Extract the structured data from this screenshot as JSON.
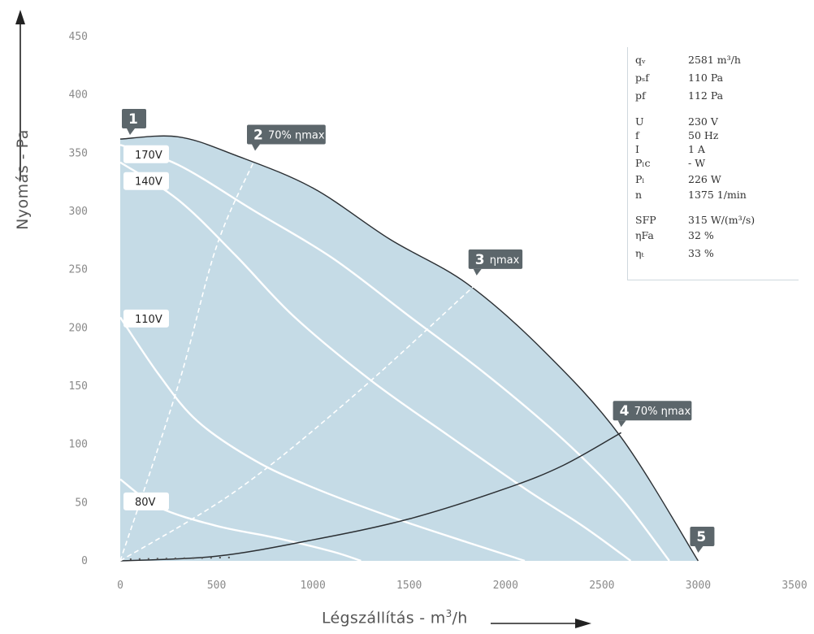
{
  "chart_data": {
    "type": "line",
    "xlabel": "Légszállítás - m",
    "xlabel_sup": "3",
    "xlabel_tail": "/h",
    "ylabel": "Nyomás - Pa",
    "xlim": [
      0,
      3500
    ],
    "ylim": [
      0,
      450
    ],
    "x_ticks": [
      "0",
      "500",
      "1000",
      "1500",
      "2000",
      "2500",
      "3000",
      "3500"
    ],
    "y_ticks": [
      "0",
      "50",
      "100",
      "150",
      "200",
      "250",
      "300",
      "350",
      "400",
      "450"
    ],
    "grid": false,
    "area_fill": "#c5dbe6",
    "envelope": [
      [
        0,
        362
      ],
      [
        300,
        364
      ],
      [
        600,
        348
      ],
      [
        1000,
        320
      ],
      [
        1400,
        276
      ],
      [
        1800,
        238
      ],
      [
        2200,
        180
      ],
      [
        2600,
        106
      ],
      [
        3000,
        0
      ]
    ],
    "series": [
      {
        "name": "170V",
        "kind": "speed",
        "points": [
          [
            0,
            357
          ],
          [
            300,
            340
          ],
          [
            700,
            300
          ],
          [
            1100,
            260
          ],
          [
            1500,
            210
          ],
          [
            1900,
            160
          ],
          [
            2300,
            104
          ],
          [
            2600,
            54
          ],
          [
            2850,
            0
          ]
        ]
      },
      {
        "name": "140V",
        "kind": "speed",
        "points": [
          [
            0,
            342
          ],
          [
            300,
            310
          ],
          [
            600,
            262
          ],
          [
            900,
            210
          ],
          [
            1300,
            155
          ],
          [
            1700,
            108
          ],
          [
            2100,
            62
          ],
          [
            2400,
            30
          ],
          [
            2650,
            0
          ]
        ]
      },
      {
        "name": "110V",
        "kind": "speed",
        "points": [
          [
            0,
            209
          ],
          [
            200,
            160
          ],
          [
            400,
            120
          ],
          [
            700,
            86
          ],
          [
            1000,
            63
          ],
          [
            1400,
            38
          ],
          [
            1800,
            16
          ],
          [
            2100,
            0
          ]
        ]
      },
      {
        "name": "80V",
        "kind": "speed",
        "points": [
          [
            0,
            70
          ],
          [
            200,
            46
          ],
          [
            500,
            30
          ],
          [
            800,
            20
          ],
          [
            1100,
            8
          ],
          [
            1250,
            0
          ]
        ]
      },
      {
        "name": "system",
        "kind": "system",
        "points": [
          [
            0,
            0
          ],
          [
            500,
            4
          ],
          [
            1000,
            18
          ],
          [
            1500,
            36
          ],
          [
            2000,
            62
          ],
          [
            2300,
            82
          ],
          [
            2600,
            110
          ]
        ]
      },
      {
        "name": "2 70% ηmax",
        "kind": "efficiency",
        "points": [
          [
            0,
            0
          ],
          [
            300,
            150
          ],
          [
            500,
            270
          ],
          [
            700,
            345
          ]
        ]
      },
      {
        "name": "3 ηmax",
        "kind": "efficiency",
        "points": [
          [
            0,
            0
          ],
          [
            600,
            60
          ],
          [
            1200,
            140
          ],
          [
            1850,
            238
          ]
        ]
      }
    ],
    "voltage_labels": [
      {
        "text": "170V",
        "y": 349
      },
      {
        "text": "140V",
        "y": 326
      },
      {
        "text": "110V",
        "y": 208
      },
      {
        "text": "80V",
        "y": 51
      }
    ],
    "markers": [
      {
        "num": "1",
        "text": "",
        "x": 0,
        "y": 362
      },
      {
        "num": "2",
        "text": "70% ηmax",
        "x": 700,
        "y": 345
      },
      {
        "num": "3",
        "text": "ηmax",
        "x": 1850,
        "y": 238
      },
      {
        "num": "4",
        "text": "70% ηmax",
        "x": 2600,
        "y": 108
      },
      {
        "num": "5",
        "text": "",
        "x": 3000,
        "y": 0
      }
    ],
    "marker_color": "#5c666b"
  },
  "info_table": [
    {
      "k": "qᵥ",
      "v": "2581 m³/h"
    },
    {
      "k": "pₛf",
      "v": "110 Pa"
    },
    {
      "k": "pf",
      "v": "112 Pa"
    },
    {
      "k": "U",
      "v": "230 V"
    },
    {
      "k": "f",
      "v": "50 Hz"
    },
    {
      "k": "I",
      "v": "1 A"
    },
    {
      "k": "Pₗc",
      "v": "- W"
    },
    {
      "k": "Pₗ",
      "v": "226 W"
    },
    {
      "k": "n",
      "v": "1375 1/min"
    },
    {
      "k": "SFP",
      "v": "315 W/(m³/s)"
    },
    {
      "k": "ηFa",
      "v": "32 %"
    },
    {
      "k": "ηₜ",
      "v": "33 %"
    }
  ]
}
